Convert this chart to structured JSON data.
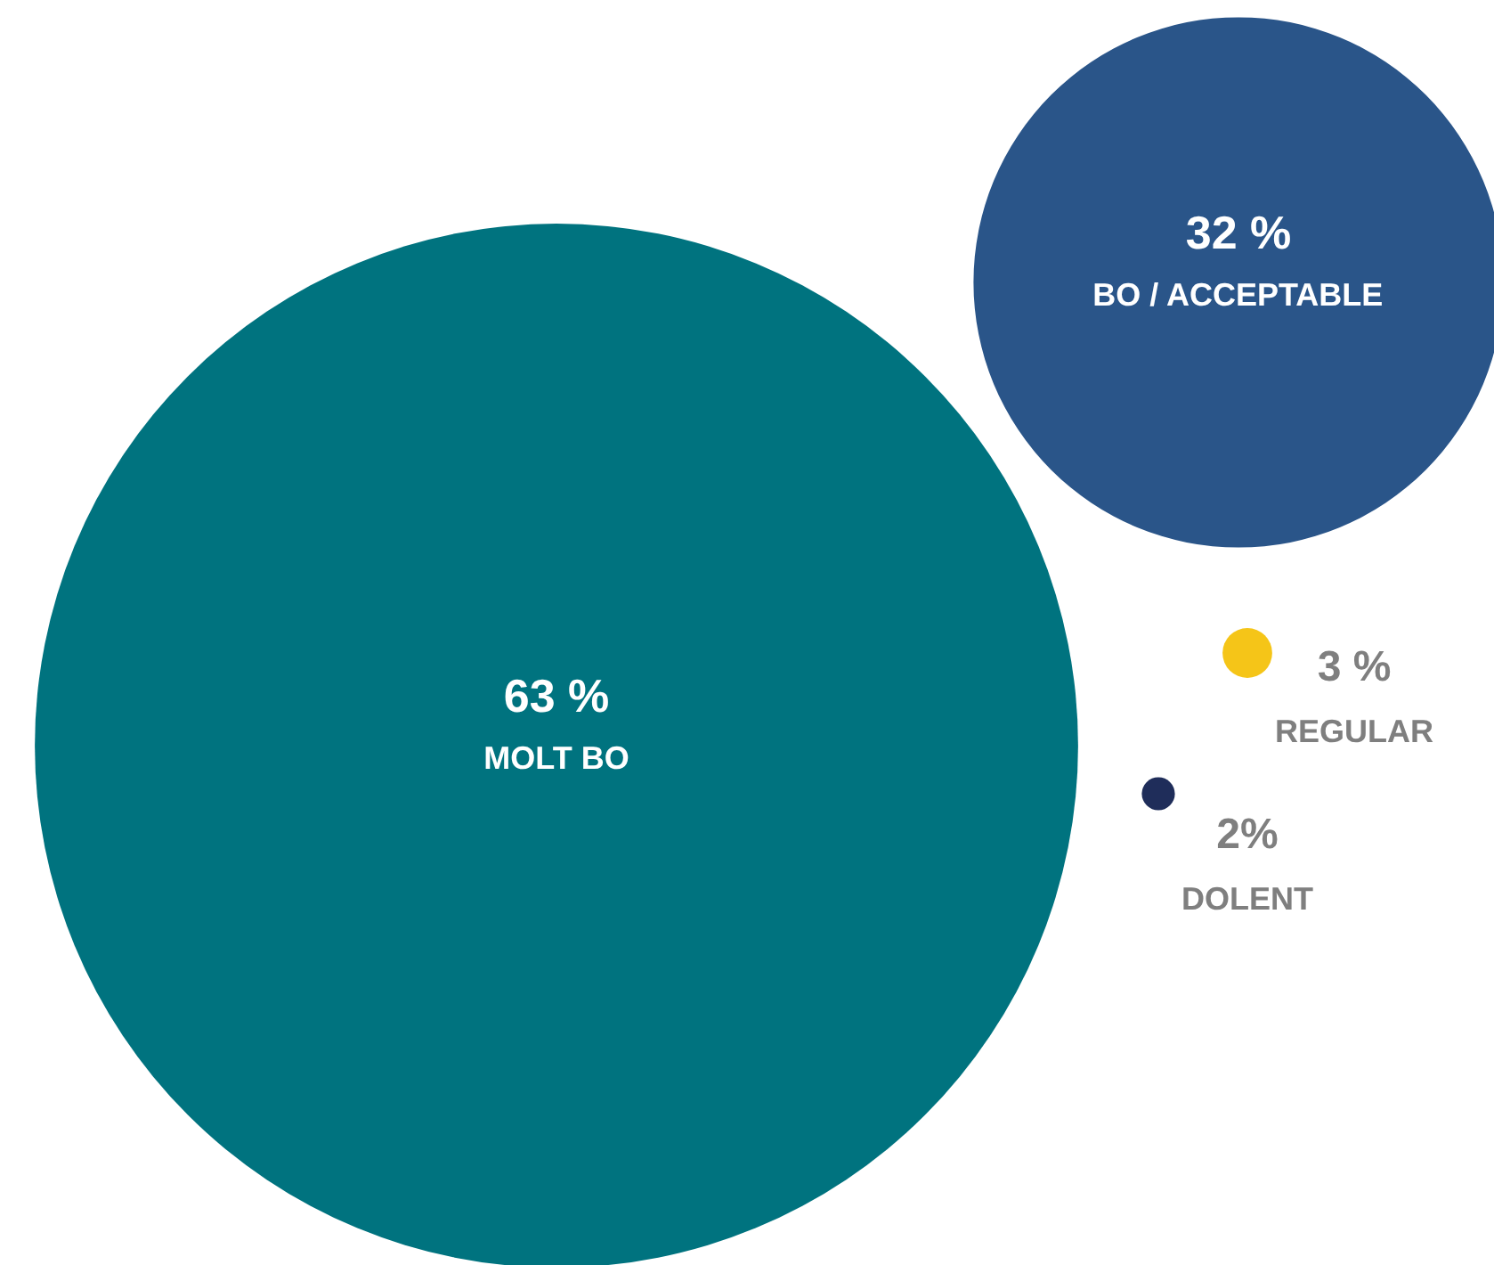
{
  "chart_data": {
    "type": "other",
    "categories": [
      "MOLT BO",
      "BO / ACCEPTABLE",
      "REGULAR",
      "DOLENT"
    ],
    "values": [
      63,
      32,
      3,
      2
    ],
    "value_labels": [
      "63 %",
      "32 %",
      "3 %",
      "2%"
    ],
    "colors": [
      "#00737f",
      "#2a5589",
      "#f5c518",
      "#1f2d5a"
    ]
  }
}
